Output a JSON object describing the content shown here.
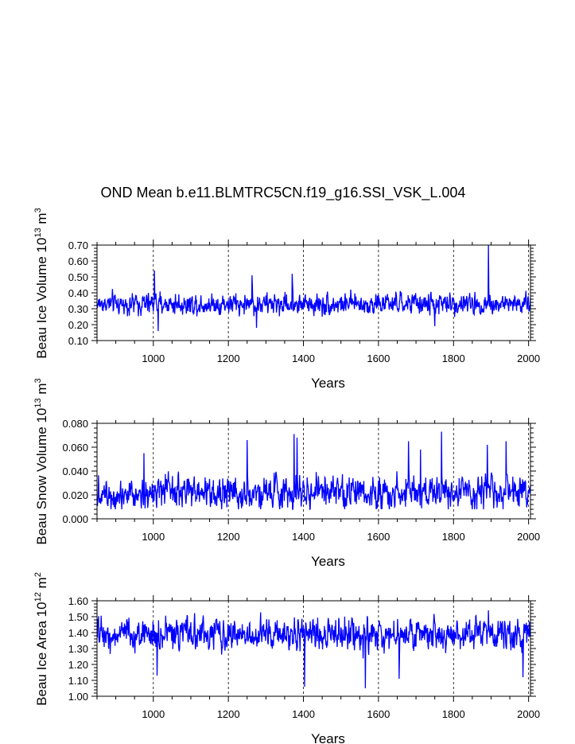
{
  "title": "OND Mean b.e11.BLMTRC5CN.f19_g16.SSI_VSK_L.004",
  "chart_data": [
    {
      "type": "line",
      "id": "ice-volume",
      "ylabel": "Beau Ice Volume",
      "ylabel_factor": "10",
      "ylabel_exp": "13",
      "ylabel_unit": "m",
      "ylabel_unit_exp": "3",
      "xlabel": "Years",
      "xlim": [
        850,
        2005
      ],
      "ylim": [
        0.1,
        0.7
      ],
      "xticks": [
        1000,
        1200,
        1400,
        1600,
        1800,
        2000
      ],
      "xtick_labels": [
        "1000",
        "1200",
        "1400",
        "1600",
        "1800",
        "2000"
      ],
      "yticks": [
        0.1,
        0.2,
        0.3,
        0.4,
        0.5,
        0.6,
        0.7
      ],
      "ytick_labels": [
        "0.10",
        "0.20",
        "0.30",
        "0.40",
        "0.50",
        "0.60",
        "0.70"
      ],
      "series_color": "#0000ff",
      "grid": "vertical dashed at major x ticks",
      "gen": {
        "base": 0.33,
        "noise": 0.045,
        "min": 0.15,
        "max": 0.7,
        "peaks": [
          [
            1003,
            0.54
          ],
          [
            1013,
            0.16
          ],
          [
            1263,
            0.51
          ],
          [
            1370,
            0.52
          ],
          [
            1893,
            0.7
          ],
          [
            1275,
            0.18
          ],
          [
            1750,
            0.19
          ]
        ]
      }
    },
    {
      "type": "line",
      "id": "snow-volume",
      "ylabel": "Beau Snow Volume",
      "ylabel_factor": "10",
      "ylabel_exp": "13",
      "ylabel_unit": "m",
      "ylabel_unit_exp": "3",
      "xlabel": "Years",
      "xlim": [
        850,
        2005
      ],
      "ylim": [
        0.0,
        0.08
      ],
      "xticks": [
        1000,
        1200,
        1400,
        1600,
        1800,
        2000
      ],
      "xtick_labels": [
        "1000",
        "1200",
        "1400",
        "1600",
        "1800",
        "2000"
      ],
      "yticks": [
        0.0,
        0.02,
        0.04,
        0.06,
        0.08
      ],
      "ytick_labels": [
        "0.000",
        "0.020",
        "0.040",
        "0.060",
        "0.080"
      ],
      "series_color": "#0000ff",
      "grid": "vertical dashed at major x ticks",
      "gen": {
        "base": 0.022,
        "noise": 0.009,
        "min": 0.008,
        "max": 0.075,
        "peaks": [
          [
            975,
            0.055
          ],
          [
            1250,
            0.066
          ],
          [
            1375,
            0.071
          ],
          [
            1383,
            0.068
          ],
          [
            1680,
            0.065
          ],
          [
            1768,
            0.073
          ],
          [
            1890,
            0.062
          ],
          [
            1940,
            0.065
          ],
          [
            1712,
            0.058
          ]
        ]
      }
    },
    {
      "type": "line",
      "id": "ice-area",
      "ylabel": "Beau Ice Area",
      "ylabel_factor": "10",
      "ylabel_exp": "12",
      "ylabel_unit": "m",
      "ylabel_unit_exp": "2",
      "xlabel": "Years",
      "xlim": [
        850,
        2005
      ],
      "ylim": [
        1.0,
        1.6
      ],
      "xticks": [
        1000,
        1200,
        1400,
        1600,
        1800,
        2000
      ],
      "xtick_labels": [
        "1000",
        "1200",
        "1400",
        "1600",
        "1800",
        "2000"
      ],
      "yticks": [
        1.0,
        1.1,
        1.2,
        1.3,
        1.4,
        1.5,
        1.6
      ],
      "ytick_labels": [
        "1.00",
        "1.10",
        "1.20",
        "1.30",
        "1.40",
        "1.50",
        "1.60"
      ],
      "series_color": "#0000ff",
      "grid": "vertical dashed at major x ticks",
      "gen": {
        "base": 1.39,
        "noise": 0.065,
        "min": 1.05,
        "max": 1.54,
        "peaks": [
          [
            1403,
            1.06
          ],
          [
            1565,
            1.05
          ],
          [
            1655,
            1.11
          ],
          [
            1985,
            1.12
          ],
          [
            1893,
            1.54
          ],
          [
            1010,
            1.13
          ]
        ]
      }
    }
  ]
}
